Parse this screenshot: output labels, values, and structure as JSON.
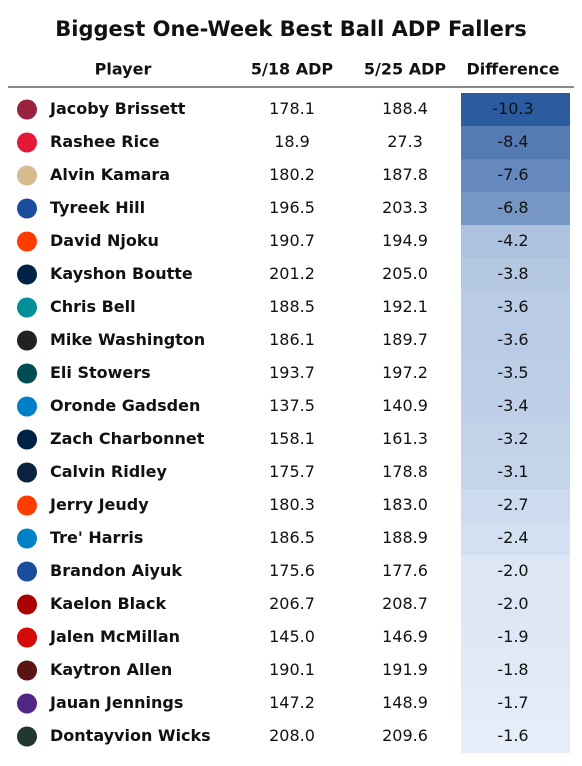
{
  "header": {
    "title": "Biggest One-Week Best Ball ADP Fallers"
  },
  "table": {
    "columns": [
      "Player",
      "5/18 ADP",
      "5/25 ADP",
      "Difference"
    ],
    "rows": [
      [
        "Jacoby Brissett",
        "178.1",
        "188.4",
        "-10.3"
      ],
      [
        "Rashee Rice",
        "18.9",
        "27.3",
        "-8.4"
      ],
      [
        "Alvin Kamara",
        "180.2",
        "187.8",
        "-7.6"
      ],
      [
        "Tyreek Hill",
        "196.5",
        "203.3",
        "-6.8"
      ],
      [
        "David Njoku",
        "190.7",
        "194.9",
        "-4.2"
      ],
      [
        "Kayshon Boutte",
        "201.2",
        "205.0",
        "-3.8"
      ],
      [
        "Chris Bell",
        "188.5",
        "192.1",
        "-3.6"
      ],
      [
        "Mike Washington",
        "186.1",
        "189.7",
        "-3.6"
      ],
      [
        "Eli Stowers",
        "193.7",
        "197.2",
        "-3.5"
      ],
      [
        "Oronde Gadsden",
        "137.5",
        "140.9",
        "-3.4"
      ],
      [
        "Zach Charbonnet",
        "158.1",
        "161.3",
        "-3.2"
      ],
      [
        "Calvin Ridley",
        "175.7",
        "178.8",
        "-3.1"
      ],
      [
        "Jerry Jeudy",
        "180.3",
        "183.0",
        "-2.7"
      ],
      [
        "Tre' Harris",
        "186.5",
        "188.9",
        "-2.4"
      ],
      [
        "Brandon Aiyuk",
        "175.6",
        "177.6",
        "-2.0"
      ],
      [
        "Kaelon Black",
        "206.7",
        "208.7",
        "-2.0"
      ],
      [
        "Jalen McMillan",
        "145.0",
        "146.9",
        "-1.9"
      ],
      [
        "Kaytron Allen",
        "190.1",
        "191.9",
        "-1.8"
      ],
      [
        "Jauan Jennings",
        "147.2",
        "148.9",
        "-1.7"
      ],
      [
        "Dontayvion Wicks",
        "208.0",
        "209.6",
        "-1.6"
      ]
    ]
  }
}
